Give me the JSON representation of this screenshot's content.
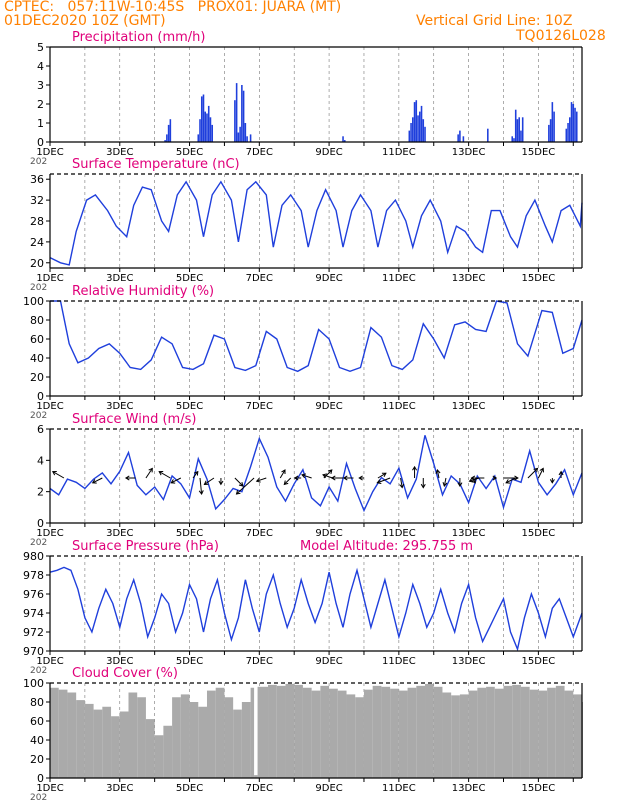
{
  "header": {
    "line1_left": "CPTEC:   057:11W-10:45S   PROX01: JUARA (MT)",
    "line2_left": "01DEC2020 10Z (GMT)",
    "line2_right": "Vertical Grid Line: 10Z",
    "line3_right": "TQ0126L028"
  },
  "colors": {
    "header": "#ff8000",
    "panel_title": "#e0007a",
    "line": "#1f3fdc",
    "bar": "#1f3fdc",
    "arrow": "#000000",
    "cloud": "#aaaaaa"
  },
  "x_axis": {
    "domain": [
      0,
      15.25
    ],
    "tick_labels": [
      "1DEC",
      "3DEC",
      "5DEC",
      "7DEC",
      "9DEC",
      "11DEC",
      "13DEC",
      "15DEC"
    ],
    "tick_days": [
      0,
      2,
      4,
      6,
      8,
      10,
      12,
      14
    ],
    "year_stub": "202"
  },
  "chart_data": [
    {
      "type": "bar",
      "title": "Precipitation  (mm/h)",
      "ylim": [
        0,
        5
      ],
      "yticks": [
        "0",
        "1",
        "2",
        "3",
        "4",
        "5"
      ],
      "x": [
        3.3,
        3.35,
        3.4,
        3.45,
        4.25,
        4.3,
        4.35,
        4.4,
        4.45,
        4.5,
        4.55,
        4.6,
        4.65,
        5.3,
        5.35,
        5.4,
        5.45,
        5.5,
        5.55,
        5.6,
        5.65,
        5.75,
        8.4,
        8.45,
        10.3,
        10.35,
        10.4,
        10.45,
        10.5,
        10.55,
        10.6,
        10.65,
        10.7,
        10.75,
        11.7,
        11.75,
        11.85,
        12.55,
        13.25,
        13.3,
        13.35,
        13.4,
        13.45,
        13.5,
        13.55,
        14.3,
        14.35,
        14.4,
        14.45,
        14.8,
        14.85,
        14.9,
        14.95,
        15.0,
        15.05,
        15.1
      ],
      "values": [
        0.1,
        0.4,
        0.9,
        1.2,
        0.4,
        1.2,
        2.4,
        2.5,
        1.6,
        1.5,
        1.9,
        1.3,
        0.9,
        2.2,
        3.1,
        0.5,
        0.8,
        3.0,
        2.7,
        1.0,
        0.3,
        0.4,
        0.3,
        0.1,
        0.6,
        1.0,
        1.3,
        2.1,
        2.2,
        1.4,
        1.6,
        1.9,
        1.2,
        0.8,
        0.4,
        0.6,
        0.3,
        0.7,
        0.3,
        0.2,
        1.7,
        1.2,
        1.3,
        0.6,
        1.3,
        0.9,
        1.2,
        2.1,
        1.6,
        0.7,
        1.0,
        1.3,
        2.1,
        2.0,
        1.8,
        1.6
      ]
    },
    {
      "type": "line",
      "title": "Surface Temperature  (nC)",
      "ylim": [
        19,
        37
      ],
      "yticks": [
        "20",
        "24",
        "28",
        "32",
        "36"
      ],
      "x": [
        0,
        0.3,
        0.55,
        0.75,
        1.05,
        1.3,
        1.65,
        1.9,
        2.2,
        2.4,
        2.65,
        2.9,
        3.2,
        3.4,
        3.65,
        3.9,
        4.2,
        4.4,
        4.65,
        4.9,
        5.2,
        5.4,
        5.65,
        5.9,
        6.2,
        6.4,
        6.65,
        6.9,
        7.2,
        7.4,
        7.65,
        7.9,
        8.2,
        8.4,
        8.65,
        8.9,
        9.2,
        9.4,
        9.65,
        9.9,
        10.2,
        10.4,
        10.65,
        10.9,
        11.2,
        11.4,
        11.65,
        11.9,
        12.2,
        12.4,
        12.65,
        12.9,
        13.2,
        13.4,
        13.65,
        13.9,
        14.2,
        14.4,
        14.65,
        14.9,
        15.2,
        15.25
      ],
      "values": [
        21,
        20,
        19.6,
        26,
        32,
        33,
        30,
        27,
        25,
        31,
        34.5,
        34,
        28,
        26,
        33,
        35.5,
        32,
        25,
        33,
        35.5,
        32,
        24,
        34,
        35.5,
        33,
        23,
        31,
        33,
        30,
        23,
        30,
        34,
        30,
        23,
        30,
        33,
        30,
        23,
        30,
        32,
        28,
        23,
        29,
        32,
        28,
        22,
        27,
        26,
        23,
        22,
        30,
        30,
        25,
        23,
        29,
        32,
        27,
        24,
        30,
        31,
        27,
        31.5
      ]
    },
    {
      "type": "line",
      "title": "Relative Humidity  (%)",
      "ylim": [
        0,
        100
      ],
      "yticks": [
        "0",
        "20",
        "40",
        "60",
        "80",
        "100"
      ],
      "x": [
        0,
        0.3,
        0.55,
        0.8,
        1.1,
        1.4,
        1.7,
        2.0,
        2.3,
        2.6,
        2.9,
        3.2,
        3.5,
        3.8,
        4.1,
        4.4,
        4.7,
        5.0,
        5.3,
        5.6,
        5.9,
        6.2,
        6.5,
        6.8,
        7.1,
        7.4,
        7.7,
        8.0,
        8.3,
        8.6,
        8.9,
        9.2,
        9.5,
        9.8,
        10.1,
        10.4,
        10.7,
        11.0,
        11.3,
        11.6,
        11.9,
        12.2,
        12.5,
        12.8,
        13.1,
        13.4,
        13.7,
        14.1,
        14.4,
        14.7,
        15.0,
        15.25
      ],
      "values": [
        100,
        100,
        55,
        35,
        40,
        50,
        55,
        45,
        30,
        28,
        38,
        62,
        55,
        30,
        28,
        34,
        64,
        60,
        30,
        27,
        32,
        68,
        60,
        30,
        26,
        32,
        70,
        60,
        30,
        26,
        30,
        72,
        62,
        32,
        28,
        38,
        76,
        60,
        40,
        75,
        78,
        70,
        68,
        100,
        98,
        55,
        42,
        90,
        88,
        45,
        50,
        80
      ]
    },
    {
      "type": "line",
      "title": "Surface Wind  (m/s)",
      "ylim": [
        0,
        6
      ],
      "yticks": [
        "0",
        "2",
        "4",
        "6"
      ],
      "x": [
        0,
        0.25,
        0.5,
        0.75,
        1.0,
        1.25,
        1.5,
        1.75,
        2.0,
        2.25,
        2.5,
        2.75,
        3.0,
        3.25,
        3.5,
        3.75,
        4.0,
        4.25,
        4.5,
        4.75,
        5.0,
        5.25,
        5.5,
        5.75,
        6.0,
        6.25,
        6.5,
        6.75,
        7.0,
        7.25,
        7.5,
        7.75,
        8.0,
        8.25,
        8.5,
        8.75,
        9.0,
        9.25,
        9.5,
        9.75,
        10.0,
        10.25,
        10.5,
        10.75,
        11.0,
        11.25,
        11.5,
        11.75,
        12.0,
        12.25,
        12.5,
        12.75,
        13.0,
        13.25,
        13.5,
        13.75,
        14.0,
        14.25,
        14.5,
        14.75,
        15.0,
        15.25
      ],
      "values": [
        2.2,
        1.8,
        2.8,
        2.6,
        2.2,
        2.8,
        3.2,
        2.5,
        3.3,
        4.5,
        2.4,
        1.8,
        2.3,
        1.5,
        3.0,
        2.5,
        1.6,
        4.1,
        2.8,
        0.9,
        1.5,
        2.2,
        2.0,
        3.6,
        5.4,
        4.2,
        2.3,
        1.4,
        2.5,
        3.4,
        1.6,
        1.1,
        2.3,
        1.4,
        3.8,
        2.2,
        0.8,
        2.0,
        2.9,
        2.5,
        3.5,
        1.6,
        2.8,
        5.6,
        3.8,
        1.8,
        3.0,
        2.5,
        1.3,
        3.0,
        2.2,
        3.0,
        1.0,
        2.8,
        2.6,
        4.6,
        2.6,
        1.8,
        2.5,
        3.4,
        1.8,
        3.2
      ],
      "vectors": {
        "x": [
          0.4,
          1.5,
          2.45,
          2.75,
          3.45,
          3.75,
          4.1,
          4.3,
          4.7,
          4.9,
          5.3,
          5.85,
          6.2,
          6.6,
          6.9,
          7.2,
          7.5,
          7.85,
          8.1,
          8.4,
          8.7,
          9.0,
          9.4,
          9.75,
          10.05,
          10.45,
          10.7,
          11.15,
          11.35,
          11.75,
          12.1,
          12.3,
          12.45,
          12.7,
          13.0,
          13.35,
          13.7,
          14.0,
          14.4,
          14.65
        ],
        "u": [
          -0.7,
          -0.6,
          -0.6,
          0.4,
          -0.7,
          -0.6,
          0.3,
          0.1,
          -0.6,
          0.0,
          0.5,
          -1.1,
          -0.6,
          0.3,
          -0.4,
          -0.4,
          -0.6,
          0.5,
          -0.6,
          -0.7,
          -0.6,
          -0.3,
          0.5,
          -0.8,
          0.1,
          0.0,
          0.0,
          -0.1,
          -0.1,
          0.0,
          0.2,
          -0.6,
          -0.8,
          0.2,
          0.9,
          -0.6,
          0.6,
          0.3,
          0.0,
          0.0
        ],
        "v": [
          0.4,
          -0.3,
          0.0,
          0.6,
          0.4,
          -0.3,
          0.4,
          -1.0,
          -0.4,
          -0.4,
          -0.5,
          -1.0,
          -0.2,
          0.5,
          -0.4,
          0.0,
          0.2,
          0.5,
          0.2,
          0.0,
          0.0,
          0.0,
          0.3,
          -0.3,
          -0.6,
          0.7,
          -0.6,
          0.5,
          -0.5,
          -0.5,
          -0.3,
          -0.2,
          0.0,
          0.0,
          0.0,
          -0.3,
          0.6,
          0.6,
          -0.3,
          0.4
        ]
      }
    },
    {
      "type": "line",
      "title": "Surface Pressure  (hPa)",
      "subtitle": "Model Altitude: 295.755  m",
      "ylim": [
        970,
        980
      ],
      "yticks": [
        "970",
        "972",
        "974",
        "976",
        "978",
        "980"
      ],
      "x": [
        0,
        0.2,
        0.4,
        0.6,
        0.8,
        1.0,
        1.2,
        1.4,
        1.6,
        1.8,
        2.0,
        2.2,
        2.4,
        2.6,
        2.8,
        3.0,
        3.2,
        3.4,
        3.6,
        3.8,
        4.0,
        4.2,
        4.4,
        4.6,
        4.8,
        5.0,
        5.2,
        5.4,
        5.6,
        5.8,
        6.0,
        6.2,
        6.4,
        6.6,
        6.8,
        7.0,
        7.2,
        7.4,
        7.6,
        7.8,
        8.0,
        8.2,
        8.4,
        8.6,
        8.8,
        9.0,
        9.2,
        9.4,
        9.6,
        9.8,
        10.0,
        10.2,
        10.4,
        10.6,
        10.8,
        11.0,
        11.2,
        11.4,
        11.6,
        11.8,
        12.0,
        12.2,
        12.4,
        12.6,
        12.8,
        13.0,
        13.2,
        13.4,
        13.6,
        13.8,
        14.0,
        14.2,
        14.4,
        14.6,
        14.8,
        15.0,
        15.25
      ],
      "values": [
        978.3,
        978.5,
        978.8,
        978.5,
        976.5,
        973.5,
        972.0,
        974.5,
        976.5,
        975.0,
        972.5,
        975.5,
        977.5,
        975.0,
        971.5,
        973.5,
        976.0,
        975.0,
        972.0,
        974.0,
        977.0,
        975.5,
        972.0,
        975.5,
        977.5,
        974.0,
        971.2,
        973.5,
        977.5,
        974.5,
        972.0,
        976.0,
        978.0,
        975.0,
        972.5,
        974.5,
        977.5,
        975.0,
        973.0,
        975.0,
        978.3,
        975.0,
        972.5,
        976.0,
        978.5,
        975.5,
        972.5,
        975.0,
        977.5,
        974.5,
        971.5,
        974.0,
        977.0,
        975.0,
        972.5,
        974.0,
        976.5,
        974.0,
        972.0,
        975.0,
        977.0,
        973.5,
        971.0,
        972.5,
        974.0,
        975.5,
        972.0,
        970.2,
        973.5,
        976.0,
        974.0,
        971.5,
        974.5,
        975.5,
        973.5,
        971.5,
        974.0
      ]
    },
    {
      "type": "area",
      "title": "Cloud Cover  (%)",
      "ylim": [
        0,
        100
      ],
      "yticks": [
        "0",
        "20",
        "40",
        "60",
        "80",
        "100"
      ],
      "x": [
        0,
        0.25,
        0.5,
        0.75,
        1.0,
        1.25,
        1.5,
        1.75,
        2.0,
        2.25,
        2.5,
        2.75,
        3.0,
        3.25,
        3.5,
        3.75,
        4.0,
        4.25,
        4.5,
        4.75,
        5.0,
        5.25,
        5.5,
        5.75,
        5.85,
        5.95,
        6.25,
        6.5,
        6.75,
        7.0,
        7.25,
        7.5,
        7.75,
        8.0,
        8.25,
        8.5,
        8.75,
        9.0,
        9.25,
        9.5,
        9.75,
        10.0,
        10.25,
        10.5,
        10.75,
        11.0,
        11.25,
        11.5,
        11.75,
        12.0,
        12.25,
        12.5,
        12.75,
        13.0,
        13.25,
        13.5,
        13.75,
        14.0,
        14.25,
        14.5,
        14.75,
        15.0,
        15.25
      ],
      "values": [
        95,
        93,
        90,
        82,
        78,
        72,
        75,
        65,
        70,
        90,
        85,
        62,
        45,
        55,
        85,
        88,
        80,
        75,
        92,
        95,
        85,
        72,
        80,
        95,
        3,
        96,
        98,
        97,
        99,
        98,
        95,
        92,
        97,
        94,
        92,
        88,
        85,
        93,
        97,
        96,
        94,
        92,
        95,
        97,
        99,
        96,
        90,
        87,
        88,
        92,
        95,
        96,
        94,
        97,
        98,
        96,
        93,
        92,
        95,
        97,
        92,
        88,
        80
      ]
    }
  ]
}
